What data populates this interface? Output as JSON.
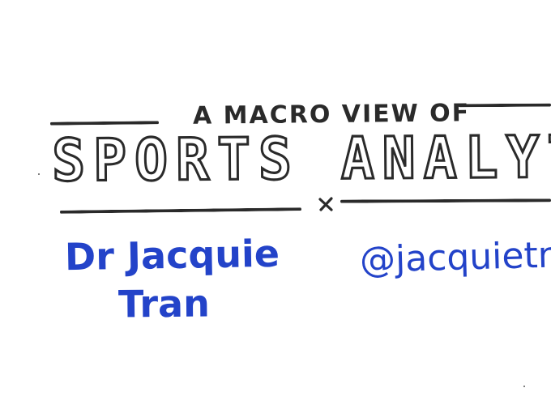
{
  "subtitle": "A MACRO VIEW OF",
  "title": "SPORTS ANALYTIC",
  "author": {
    "line1": "Dr Jacquie",
    "line2": "Tran"
  },
  "handle": "@jacquietran",
  "colors": {
    "ink_black": "#2a2a2a",
    "ink_blue": "#2343c9",
    "paper": "#ffffff"
  },
  "icons": {
    "separator": "cross-icon"
  }
}
